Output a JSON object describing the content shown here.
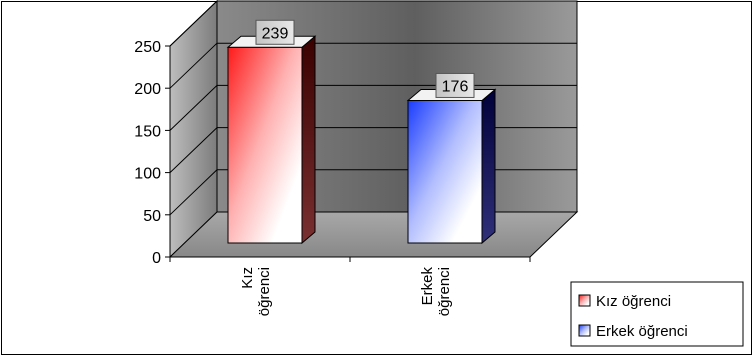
{
  "chart_data": {
    "type": "bar",
    "style": "3d-column",
    "categories": [
      "Kız\nöğrenci",
      "Erkek\nöğrenci"
    ],
    "series": [
      {
        "name": "Kız öğrenci",
        "values": [
          239,
          null
        ],
        "color": "#ff0000"
      },
      {
        "name": "Erkek öğrenci",
        "values": [
          null,
          176
        ],
        "color": "#0033ff"
      }
    ],
    "data_labels": [
      "239",
      "176"
    ],
    "yticks": [
      "0",
      "50",
      "100",
      "150",
      "200",
      "250"
    ],
    "ylim": [
      0,
      250
    ],
    "grid": true,
    "legend_position": "bottom-right",
    "title": "",
    "xlabel": "",
    "ylabel": ""
  }
}
